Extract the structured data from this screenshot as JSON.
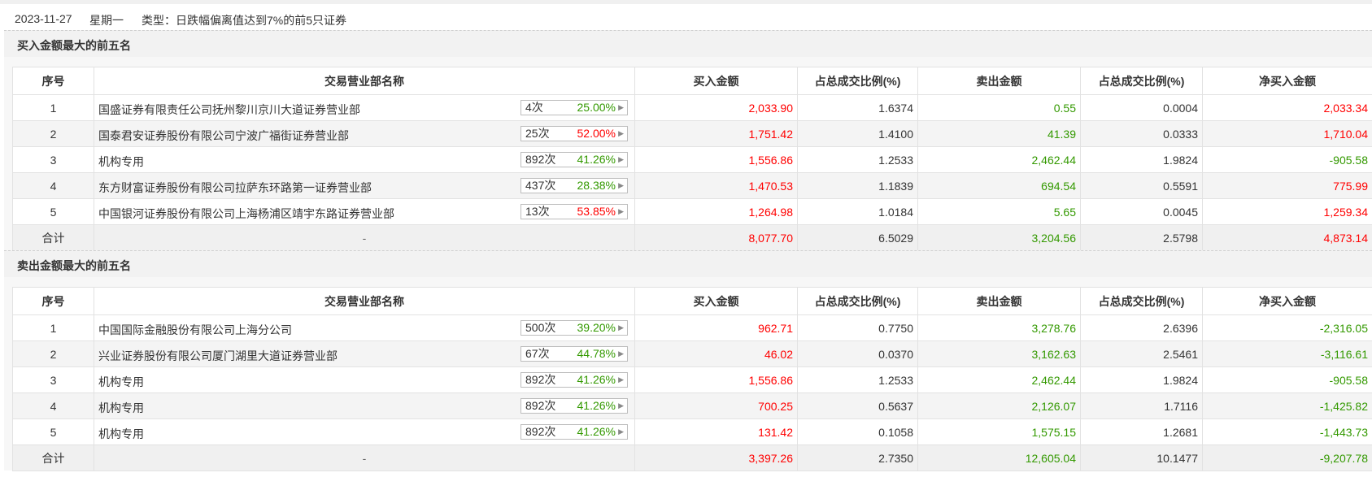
{
  "info": {
    "date": "2023-11-27",
    "weekday": "星期一",
    "type_text": "类型：日跌幅偏离值达到7%的前5只证券"
  },
  "headers": [
    "序号",
    "交易营业部名称",
    "买入金额",
    "占总成交比例(%)",
    "卖出金额",
    "占总成交比例(%)",
    "净买入金额"
  ],
  "colors": {
    "red": "#ff0000",
    "green": "#339900",
    "header_bg": "#f2f2f2"
  },
  "buy_section": {
    "title": "买入金额最大的前五名",
    "rows": [
      {
        "idx": "1",
        "name": "国盛证券有限责任公司抚州黎川京川大道证券营业部",
        "times": "4次",
        "rate": "25.00%",
        "rate_color": "green",
        "buy": "2,033.90",
        "buy_pct": "1.6374",
        "sell": "0.55",
        "sell_pct": "0.0004",
        "net": "2,033.34",
        "net_color": "red"
      },
      {
        "idx": "2",
        "name": "国泰君安证券股份有限公司宁波广福街证券营业部",
        "times": "25次",
        "rate": "52.00%",
        "rate_color": "red",
        "buy": "1,751.42",
        "buy_pct": "1.4100",
        "sell": "41.39",
        "sell_pct": "0.0333",
        "net": "1,710.04",
        "net_color": "red"
      },
      {
        "idx": "3",
        "name": "机构专用",
        "times": "892次",
        "rate": "41.26%",
        "rate_color": "green",
        "buy": "1,556.86",
        "buy_pct": "1.2533",
        "sell": "2,462.44",
        "sell_pct": "1.9824",
        "net": "-905.58",
        "net_color": "green"
      },
      {
        "idx": "4",
        "name": "东方财富证券股份有限公司拉萨东环路第一证券营业部",
        "times": "437次",
        "rate": "28.38%",
        "rate_color": "green",
        "buy": "1,470.53",
        "buy_pct": "1.1839",
        "sell": "694.54",
        "sell_pct": "0.5591",
        "net": "775.99",
        "net_color": "red"
      },
      {
        "idx": "5",
        "name": "中国银河证券股份有限公司上海杨浦区靖宇东路证券营业部",
        "times": "13次",
        "rate": "53.85%",
        "rate_color": "red",
        "buy": "1,264.98",
        "buy_pct": "1.0184",
        "sell": "5.65",
        "sell_pct": "0.0045",
        "net": "1,259.34",
        "net_color": "red"
      }
    ],
    "total": {
      "label": "合计",
      "dash": "-",
      "buy": "8,077.70",
      "buy_pct": "6.5029",
      "sell": "3,204.56",
      "sell_pct": "2.5798",
      "net": "4,873.14",
      "net_color": "red"
    }
  },
  "sell_section": {
    "title": "卖出金额最大的前五名",
    "rows": [
      {
        "idx": "1",
        "name": "中国国际金融股份有限公司上海分公司",
        "times": "500次",
        "rate": "39.20%",
        "rate_color": "green",
        "buy": "962.71",
        "buy_pct": "0.7750",
        "sell": "3,278.76",
        "sell_pct": "2.6396",
        "net": "-2,316.05",
        "net_color": "green"
      },
      {
        "idx": "2",
        "name": "兴业证券股份有限公司厦门湖里大道证券营业部",
        "times": "67次",
        "rate": "44.78%",
        "rate_color": "green",
        "buy": "46.02",
        "buy_pct": "0.0370",
        "sell": "3,162.63",
        "sell_pct": "2.5461",
        "net": "-3,116.61",
        "net_color": "green"
      },
      {
        "idx": "3",
        "name": "机构专用",
        "times": "892次",
        "rate": "41.26%",
        "rate_color": "green",
        "buy": "1,556.86",
        "buy_pct": "1.2533",
        "sell": "2,462.44",
        "sell_pct": "1.9824",
        "net": "-905.58",
        "net_color": "green"
      },
      {
        "idx": "4",
        "name": "机构专用",
        "times": "892次",
        "rate": "41.26%",
        "rate_color": "green",
        "buy": "700.25",
        "buy_pct": "0.5637",
        "sell": "2,126.07",
        "sell_pct": "1.7116",
        "net": "-1,425.82",
        "net_color": "green"
      },
      {
        "idx": "5",
        "name": "机构专用",
        "times": "892次",
        "rate": "41.26%",
        "rate_color": "green",
        "buy": "131.42",
        "buy_pct": "0.1058",
        "sell": "1,575.15",
        "sell_pct": "1.2681",
        "net": "-1,443.73",
        "net_color": "green"
      }
    ],
    "total": {
      "label": "合计",
      "dash": "-",
      "buy": "3,397.26",
      "buy_pct": "2.7350",
      "sell": "12,605.04",
      "sell_pct": "10.1477",
      "net": "-9,207.78",
      "net_color": "green"
    }
  }
}
